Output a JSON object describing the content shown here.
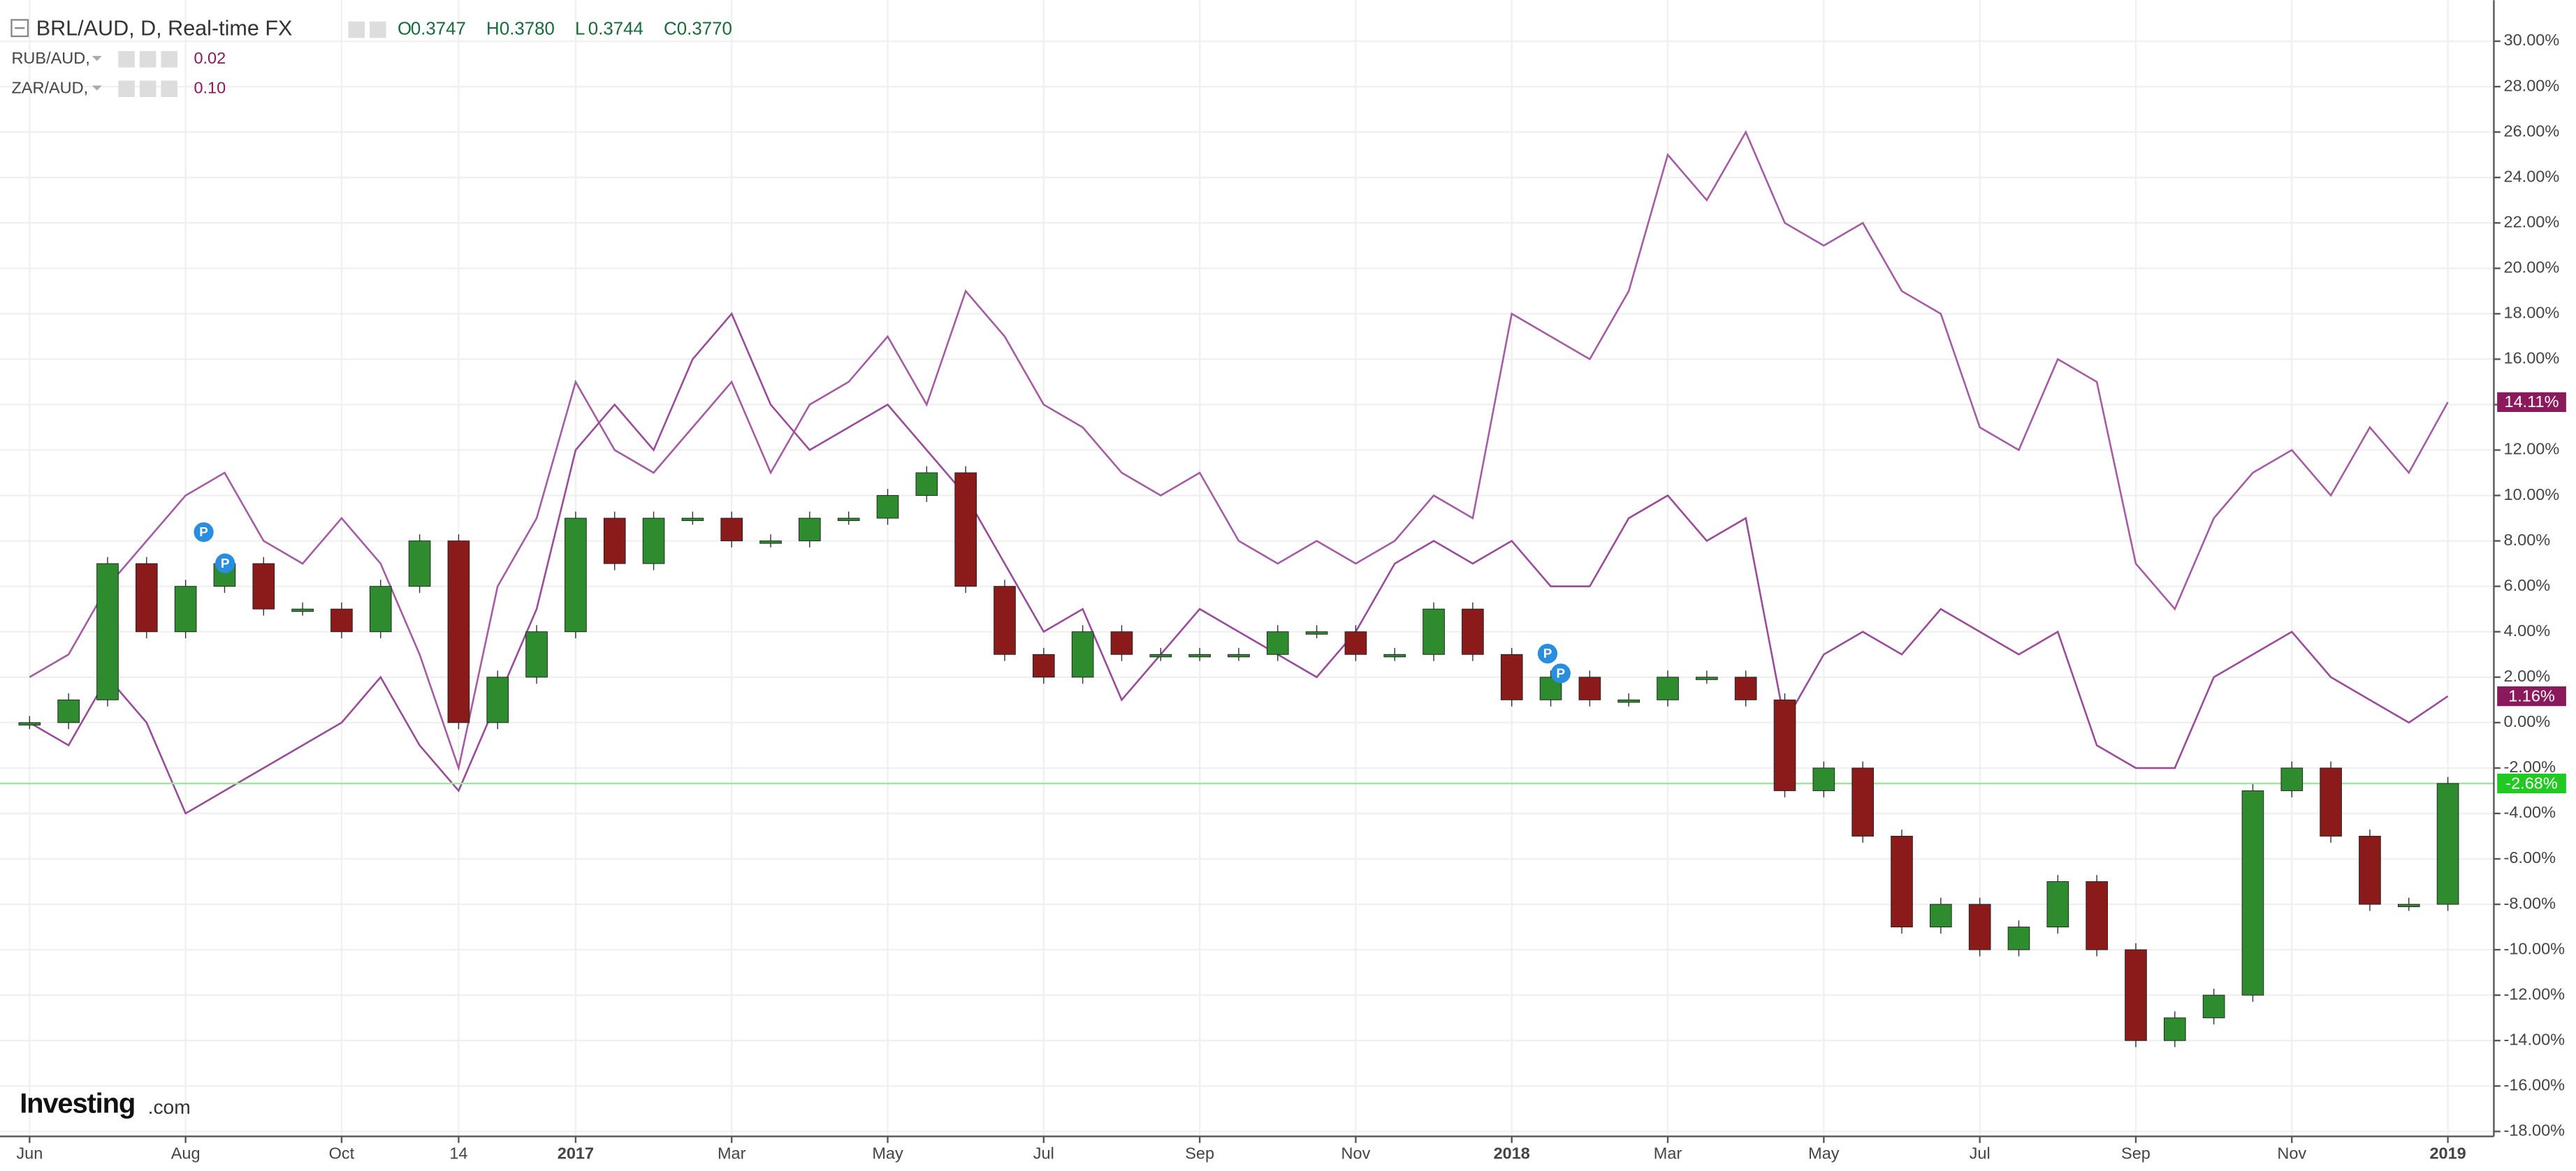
{
  "chart_data": {
    "type": "candlestick",
    "title": "BRL/AUD, D, Real-time FX",
    "ohlc": [
      {
        "label": "O",
        "value": "0.3747"
      },
      {
        "label": "H",
        "value": "0.3780"
      },
      {
        "label": "L",
        "value": "0.3744"
      },
      {
        "label": "C",
        "value": "0.3770"
      }
    ],
    "brand": {
      "name": "Investing",
      "suffix": ".com"
    },
    "pins": [
      "P",
      "P",
      "P",
      "P"
    ],
    "categories": [
      "Jun",
      null,
      null,
      null,
      "Aug",
      null,
      null,
      null,
      "Oct",
      null,
      null,
      "14",
      null,
      null,
      "2017",
      null,
      null,
      null,
      "Mar",
      null,
      null,
      null,
      "May",
      null,
      null,
      null,
      "Jul",
      null,
      null,
      null,
      "Sep",
      null,
      null,
      null,
      "Nov",
      null,
      null,
      null,
      "2018",
      null,
      null,
      null,
      "Mar",
      null,
      null,
      null,
      "May",
      null,
      null,
      null,
      "Jul",
      null,
      null,
      null,
      "Sep",
      null,
      null,
      null,
      "Nov",
      null,
      null,
      null,
      "2019"
    ],
    "values": [
      0,
      1,
      7,
      4,
      6,
      7,
      5,
      5,
      4,
      6,
      8,
      0,
      2,
      4,
      9,
      7,
      9,
      9,
      8,
      8,
      9,
      9,
      10,
      11,
      6,
      3,
      2,
      4,
      3,
      3,
      3,
      3,
      4,
      4,
      3,
      3,
      5,
      3,
      1,
      2,
      1,
      1,
      2,
      2,
      1,
      -3,
      -2,
      -5,
      -9,
      -8,
      -10,
      -9,
      -7,
      -10,
      -14,
      -13,
      -12,
      -3,
      -2,
      -5,
      -8,
      -8,
      -2.68
    ],
    "value_labels": [
      null,
      null,
      null,
      null,
      null,
      null,
      null,
      null,
      null,
      null,
      null,
      null,
      null,
      null,
      null,
      null,
      null,
      null,
      null,
      null,
      null,
      null,
      null,
      null,
      null,
      null,
      null,
      null,
      null,
      null,
      null,
      null,
      null,
      null,
      null,
      null,
      null,
      null,
      null,
      null,
      null,
      null,
      null,
      null,
      null,
      null,
      null,
      null,
      null,
      null,
      null,
      null,
      null,
      null,
      null,
      null,
      null,
      null,
      null,
      null,
      null,
      null,
      "-2.68%"
    ],
    "up_color": "#2e8b2e",
    "down_color": "#8b1a1a",
    "last_line_color": "#9be89b",
    "last_label_color": "#22c922",
    "series": [
      {
        "name": "RUB/AUD,",
        "change": "0.02",
        "color": "#a45ca4",
        "label_color": "#8b1a5c",
        "values": [
          2,
          3,
          6,
          8,
          10,
          11,
          8,
          7,
          9,
          7,
          3,
          -2,
          6,
          9,
          15,
          12,
          11,
          13,
          15,
          11,
          14,
          15,
          17,
          14,
          19,
          17,
          14,
          13,
          11,
          10,
          11,
          8,
          7,
          8,
          7,
          8,
          10,
          9,
          18,
          17,
          16,
          19,
          25,
          23,
          26,
          22,
          21,
          22,
          19,
          18,
          13,
          12,
          16,
          15,
          7,
          5,
          9,
          11,
          12,
          10,
          13,
          11,
          14.11
        ],
        "value_labels": [
          null,
          null,
          null,
          null,
          null,
          null,
          null,
          null,
          null,
          null,
          null,
          null,
          null,
          null,
          null,
          null,
          null,
          null,
          null,
          null,
          null,
          null,
          null,
          null,
          null,
          null,
          null,
          null,
          null,
          null,
          null,
          null,
          null,
          null,
          null,
          null,
          null,
          null,
          null,
          null,
          null,
          null,
          null,
          null,
          null,
          null,
          null,
          null,
          null,
          null,
          null,
          null,
          null,
          null,
          null,
          null,
          null,
          null,
          null,
          null,
          null,
          null,
          "14.11%"
        ]
      },
      {
        "name": "ZAR/AUD,",
        "change": "0.10",
        "color": "#9a4c9a",
        "label_color": "#8b1a5c",
        "values": [
          0,
          -1,
          2,
          0,
          -4,
          -3,
          -2,
          -1,
          0,
          2,
          -1,
          -3,
          1,
          5,
          12,
          14,
          12,
          16,
          18,
          14,
          12,
          13,
          14,
          12,
          10,
          7,
          4,
          5,
          1,
          3,
          5,
          4,
          3,
          2,
          4,
          7,
          8,
          7,
          8,
          6,
          6,
          9,
          10,
          8,
          9,
          0,
          3,
          4,
          3,
          5,
          4,
          3,
          4,
          -1,
          -2,
          -2,
          2,
          3,
          4,
          2,
          1,
          0,
          1.16
        ],
        "value_labels": [
          null,
          null,
          null,
          null,
          null,
          null,
          null,
          null,
          null,
          null,
          null,
          null,
          null,
          null,
          null,
          null,
          null,
          null,
          null,
          null,
          null,
          null,
          null,
          null,
          null,
          null,
          null,
          null,
          null,
          null,
          null,
          null,
          null,
          null,
          null,
          null,
          null,
          null,
          null,
          null,
          null,
          null,
          null,
          null,
          null,
          null,
          null,
          null,
          null,
          null,
          null,
          null,
          null,
          null,
          null,
          null,
          null,
          null,
          null,
          null,
          null,
          null,
          "1.16%"
        ]
      }
    ],
    "ylim": [
      -18,
      30
    ],
    "yticks": [
      {
        "value": -18,
        "label": "-18.00%"
      },
      {
        "value": -16,
        "label": "-16.00%"
      },
      {
        "value": -14,
        "label": "-14.00%"
      },
      {
        "value": -12,
        "label": "-12.00%"
      },
      {
        "value": -10,
        "label": "-10.00%"
      },
      {
        "value": -8,
        "label": "-8.00%"
      },
      {
        "value": -6,
        "label": "-6.00%"
      },
      {
        "value": -4,
        "label": "-4.00%"
      },
      {
        "value": -2,
        "label": "-2.00%"
      },
      {
        "value": 0,
        "label": "0.00%"
      },
      {
        "value": 2,
        "label": "2.00%"
      },
      {
        "value": 4,
        "label": "4.00%"
      },
      {
        "value": 6,
        "label": "6.00%"
      },
      {
        "value": 8,
        "label": "8.00%"
      },
      {
        "value": 10,
        "label": "10.00%"
      },
      {
        "value": 12,
        "label": "12.00%"
      },
      {
        "value": 14,
        "label": "14.00%"
      },
      {
        "value": 16,
        "label": "16.00%"
      },
      {
        "value": 18,
        "label": "18.00%"
      },
      {
        "value": 20,
        "label": "20.00%"
      },
      {
        "value": 22,
        "label": "22.00%"
      },
      {
        "value": 24,
        "label": "24.00%"
      },
      {
        "value": 26,
        "label": "26.00%"
      },
      {
        "value": 28,
        "label": "28.00%"
      },
      {
        "value": 30,
        "label": "30.00%"
      }
    ],
    "grid": true
  }
}
